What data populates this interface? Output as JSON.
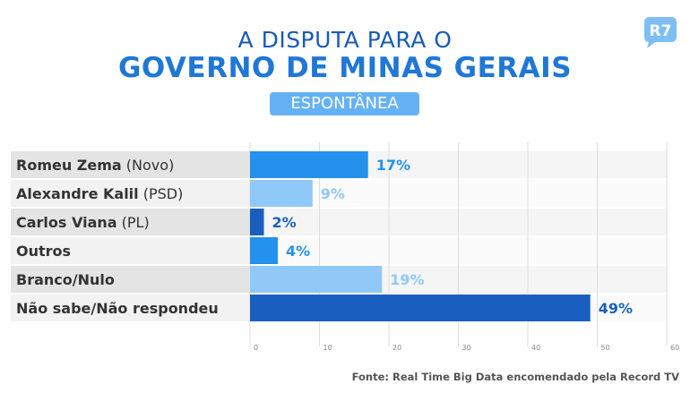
{
  "header": {
    "title_line1": "A DISPUTA PARA O",
    "title_line2": "GOVERNO DE MINAS GERAIS",
    "subtitle": "ESPONTÂNEA",
    "logo_text": "R7"
  },
  "chart_data": {
    "type": "bar",
    "orientation": "horizontal",
    "title": "A DISPUTA PARA O GOVERNO DE MINAS GERAIS",
    "subtitle": "ESPONTÂNEA",
    "categories": [
      {
        "name": "Romeu Zema",
        "party": "(Novo)"
      },
      {
        "name": "Alexandre Kalil",
        "party": "(PSD)"
      },
      {
        "name": "Carlos Viana",
        "party": "(PL)"
      },
      {
        "name": "Outros",
        "party": ""
      },
      {
        "name": "Branco/Nulo",
        "party": ""
      },
      {
        "name": "Não sabe/Não respondeu",
        "party": ""
      }
    ],
    "values": [
      17,
      9,
      2,
      4,
      19,
      49
    ],
    "data_labels": [
      "17%",
      "9%",
      "2%",
      "4%",
      "19%",
      "49%"
    ],
    "bar_colors": [
      "#2491ec",
      "#90c8f7",
      "#1a5fc0",
      "#2491ec",
      "#90c8f7",
      "#1a5fc0"
    ],
    "label_colors": [
      "#2491ec",
      "#90c8f7",
      "#1a5fc0",
      "#2491ec",
      "#90c8f7",
      "#1a5fc0"
    ],
    "xlim": [
      0,
      60
    ],
    "xticks": [
      0,
      10,
      20,
      30,
      40,
      50,
      60
    ],
    "xtick_labels": [
      "0",
      "10",
      "20",
      "30",
      "40",
      "50",
      "60"
    ],
    "grid": true,
    "xlabel": "",
    "ylabel": ""
  },
  "footer": {
    "source": "Fonte: Real Time Big Data encomendado pela Record TV"
  }
}
